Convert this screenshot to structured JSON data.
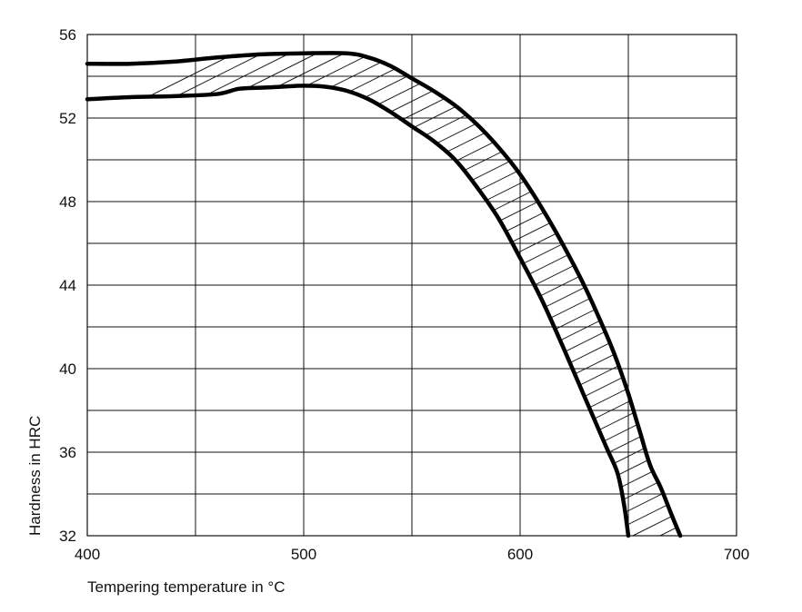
{
  "chart_data": {
    "type": "area",
    "xlabel": "Tempering temperature in °C",
    "ylabel": "Hardness in HRC",
    "xlim": [
      400,
      700
    ],
    "ylim": [
      32,
      56
    ],
    "x_ticks": [
      400,
      500,
      600,
      700
    ],
    "y_ticks": [
      32,
      36,
      40,
      44,
      48,
      52,
      56
    ],
    "x_gridlines": [
      400,
      450,
      500,
      550,
      600,
      650,
      700
    ],
    "y_gridlines": [
      32,
      34,
      36,
      38,
      40,
      42,
      44,
      46,
      48,
      50,
      52,
      54,
      56
    ],
    "grid": true,
    "legend": "none",
    "band_fill": "hatched",
    "series": [
      {
        "values": [
          [
            400,
            54.6
          ],
          [
            420,
            54.6
          ],
          [
            440,
            54.7
          ],
          [
            460,
            54.9
          ],
          [
            480,
            55.05
          ],
          [
            500,
            55.1
          ],
          [
            520,
            55.1
          ],
          [
            530,
            54.9
          ],
          [
            540,
            54.5
          ],
          [
            550,
            53.9
          ],
          [
            560,
            53.3
          ],
          [
            570,
            52.6
          ],
          [
            580,
            51.7
          ],
          [
            590,
            50.6
          ],
          [
            600,
            49.3
          ],
          [
            610,
            47.7
          ],
          [
            620,
            45.9
          ],
          [
            630,
            43.9
          ],
          [
            640,
            41.6
          ],
          [
            645,
            40.3
          ],
          [
            650,
            38.8
          ],
          [
            655,
            37.1
          ],
          [
            660,
            35.4
          ],
          [
            665,
            34.3
          ],
          [
            670,
            33.0
          ],
          [
            674,
            32.0
          ]
        ]
      },
      {
        "values": [
          [
            400,
            52.9
          ],
          [
            420,
            53.0
          ],
          [
            440,
            53.05
          ],
          [
            460,
            53.15
          ],
          [
            470,
            53.4
          ],
          [
            480,
            53.45
          ],
          [
            490,
            53.5
          ],
          [
            500,
            53.55
          ],
          [
            510,
            53.5
          ],
          [
            520,
            53.3
          ],
          [
            530,
            52.9
          ],
          [
            540,
            52.3
          ],
          [
            550,
            51.6
          ],
          [
            560,
            50.9
          ],
          [
            570,
            50.0
          ],
          [
            580,
            48.7
          ],
          [
            590,
            47.2
          ],
          [
            600,
            45.3
          ],
          [
            610,
            43.3
          ],
          [
            620,
            41.0
          ],
          [
            630,
            38.6
          ],
          [
            640,
            36.2
          ],
          [
            645,
            35.0
          ],
          [
            648,
            33.5
          ],
          [
            650,
            32.0
          ]
        ]
      }
    ]
  }
}
